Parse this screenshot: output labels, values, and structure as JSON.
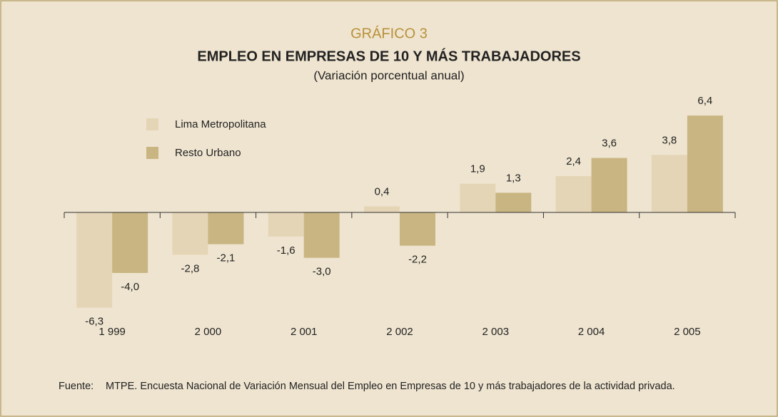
{
  "chart_data": {
    "type": "bar",
    "label": "GRÁFICO 3",
    "title": "EMPLEO EN EMPRESAS DE 10 Y MÁS TRABAJADORES",
    "subtitle": "(Variación porcentual anual)",
    "categories": [
      "1 999",
      "2 000",
      "2 001",
      "2 002",
      "2 003",
      "2 004",
      "2 005"
    ],
    "series": [
      {
        "name": "Lima Metropolitana",
        "color": "#e4d5b6",
        "values": [
          -6.3,
          -2.8,
          -1.6,
          0.4,
          1.9,
          2.4,
          3.8
        ],
        "value_labels": [
          "-6,3",
          "-2,8",
          "-1,6",
          "0,4",
          "1,9",
          "2,4",
          "3,8"
        ]
      },
      {
        "name": "Resto Urbano",
        "color": "#c9b582",
        "values": [
          -4.0,
          -2.1,
          -3.0,
          -2.2,
          1.3,
          3.6,
          6.4
        ],
        "value_labels": [
          "-4,0",
          "-2,1",
          "-3,0",
          "-2,2",
          "1,3",
          "3,6",
          "6,4"
        ]
      }
    ],
    "ylim": [
      -7,
      7
    ],
    "legend": "upper left",
    "source_label": "Fuente:",
    "source": "MTPE. Encuesta Nacional de Variación Mensual del Empleo en Empresas de 10 y más trabajadores de la actividad privada."
  }
}
